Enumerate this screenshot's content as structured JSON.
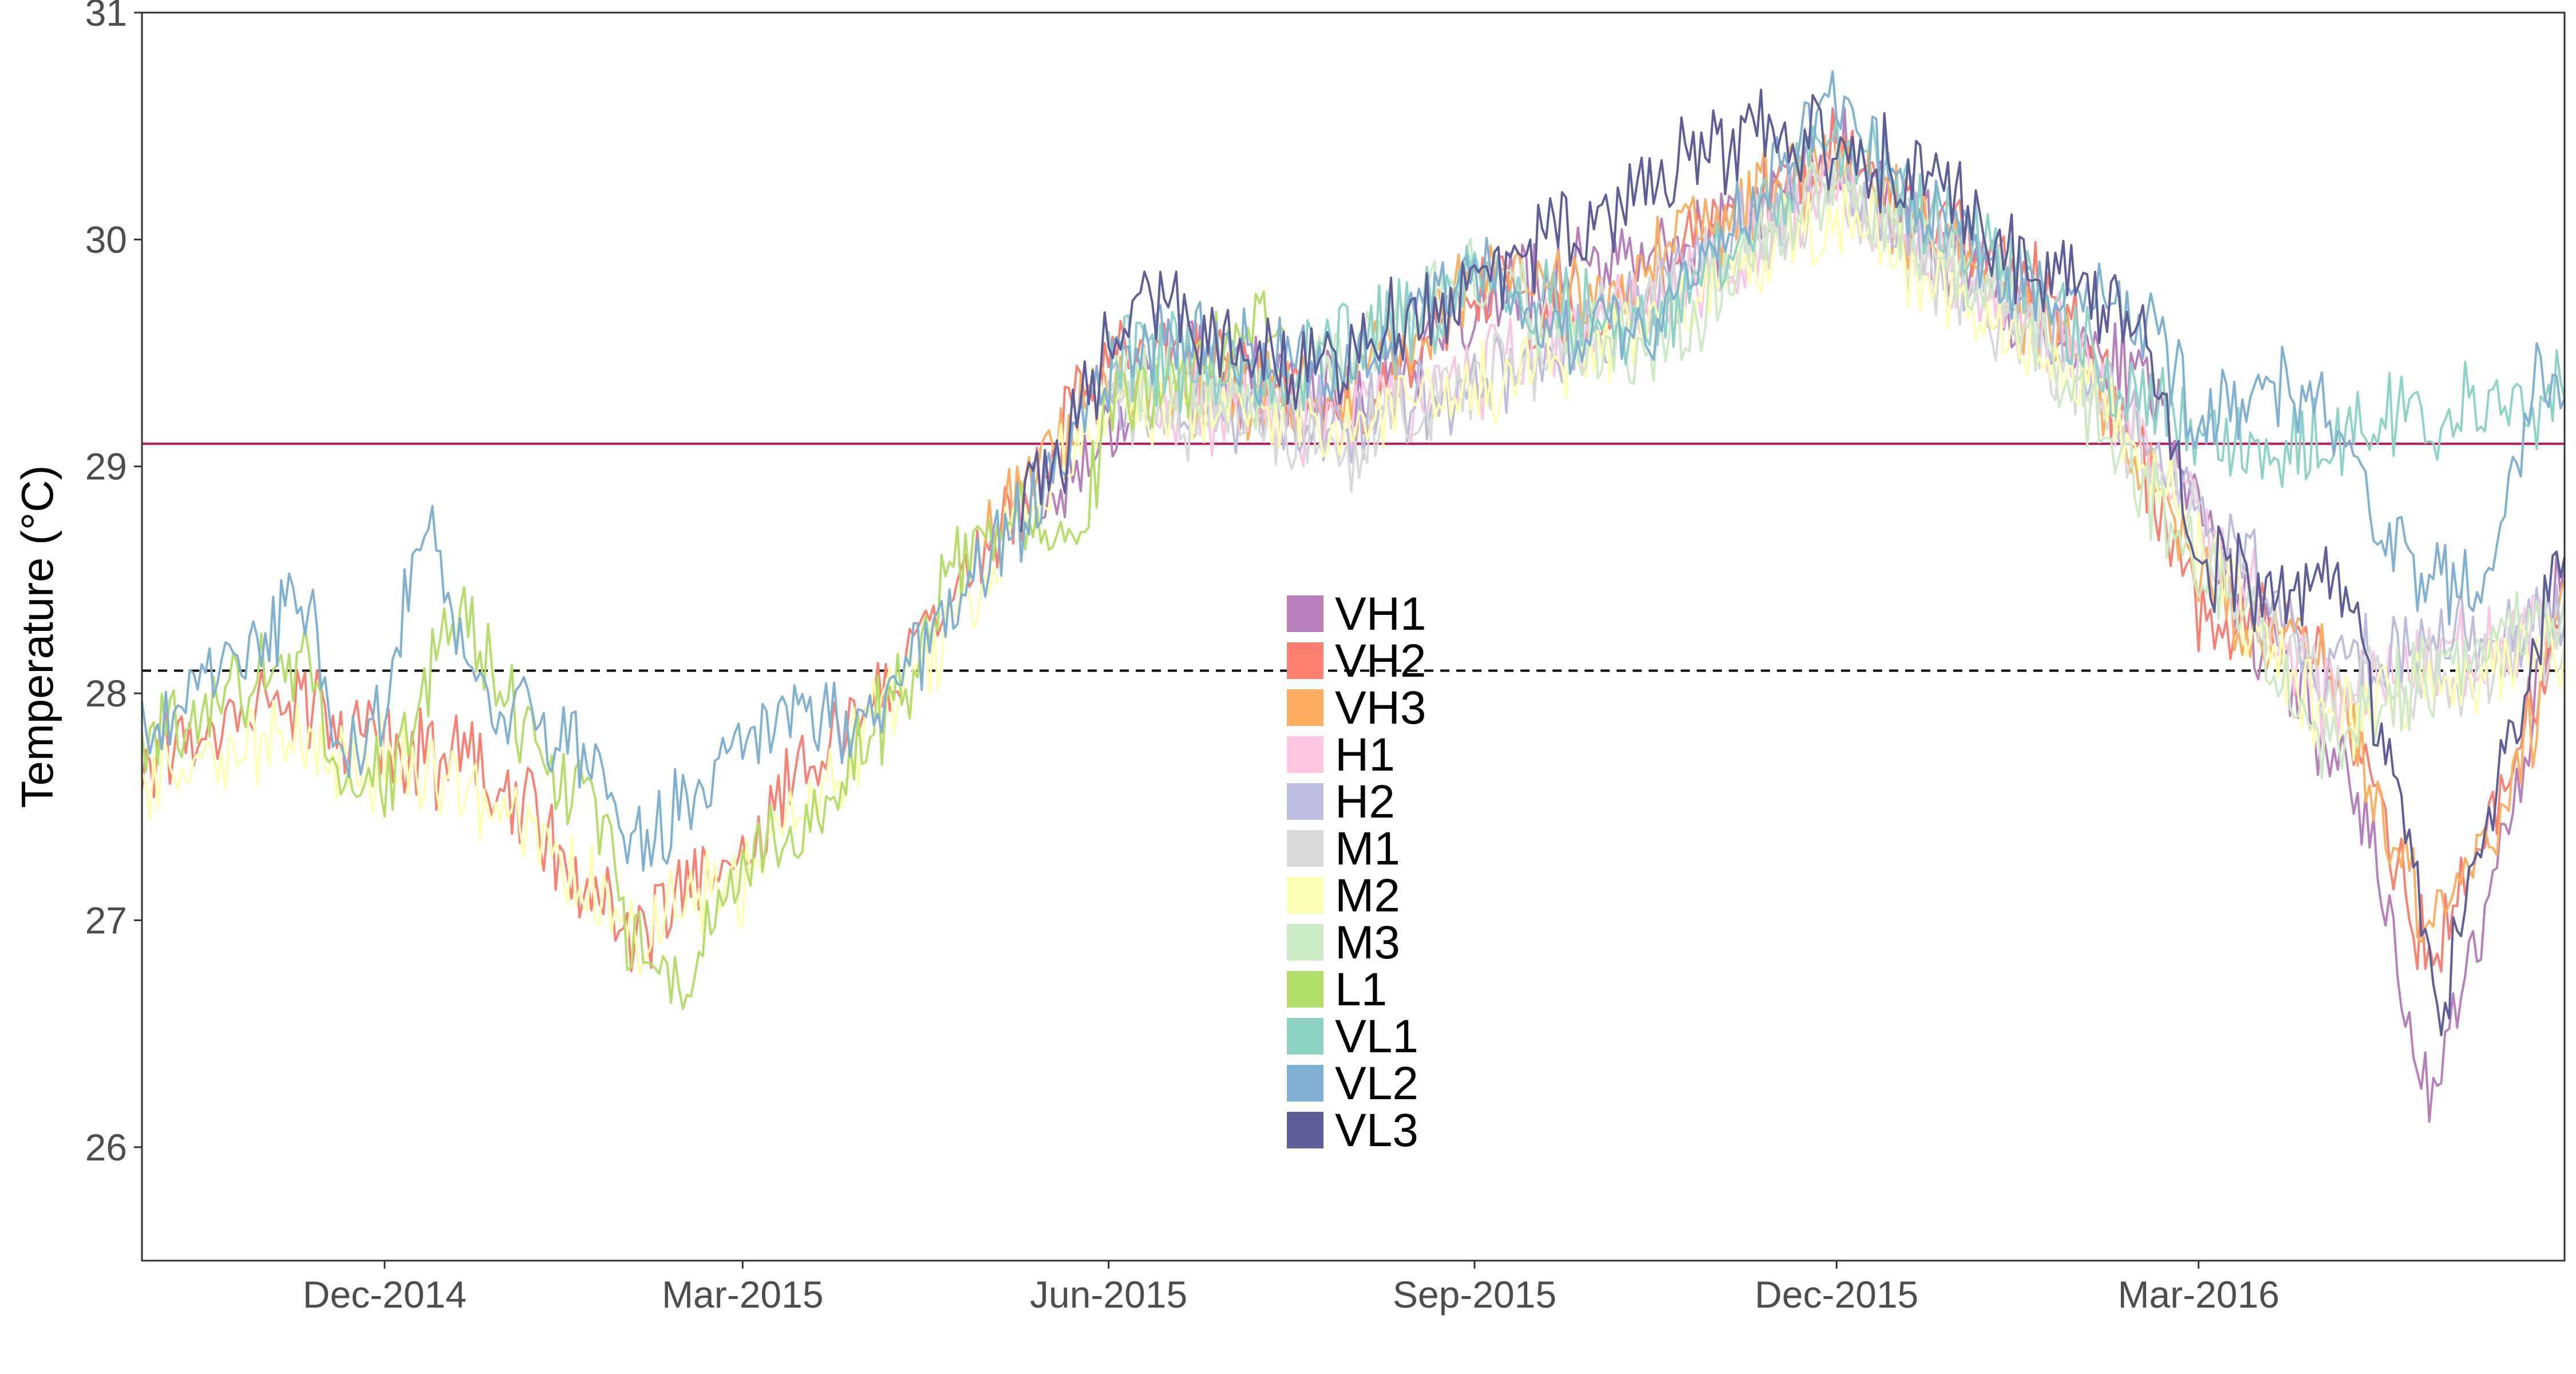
{
  "chart_data": {
    "type": "line",
    "title": "",
    "xlabel": "",
    "ylabel": "Temperature (°C)",
    "ylim": [
      25.5,
      31
    ],
    "xlim": [
      "2014-10-01",
      "2016-06-01"
    ],
    "y_ticks": [
      26,
      27,
      28,
      29,
      30,
      31
    ],
    "x_ticks": [
      {
        "date": "2014-12-01",
        "label": "Dec-2014"
      },
      {
        "date": "2015-03-01",
        "label": "Mar-2015"
      },
      {
        "date": "2015-06-01",
        "label": "Jun-2015"
      },
      {
        "date": "2015-09-01",
        "label": "Sep-2015"
      },
      {
        "date": "2015-12-01",
        "label": "Dec-2015"
      },
      {
        "date": "2016-03-01",
        "label": "Mar-2016"
      }
    ],
    "grid": false,
    "legend_placement": "center",
    "reference_lines": [
      {
        "y": 29.1,
        "style": "solid",
        "color": "#c2185b"
      },
      {
        "y": 28.1,
        "style": "dashed",
        "color": "#000000"
      }
    ],
    "series": [
      {
        "name": "VH1",
        "color": "#b97fbd",
        "points": [
          [
            "2015-05-15",
            28.8
          ],
          [
            "2015-06-15",
            29.5
          ],
          [
            "2015-08-01",
            29.3
          ],
          [
            "2015-09-15",
            29.8
          ],
          [
            "2015-11-01",
            30.0
          ],
          [
            "2015-12-01",
            30.4
          ],
          [
            "2016-01-15",
            29.7
          ],
          [
            "2016-02-15",
            29.4
          ],
          [
            "2016-03-15",
            28.3
          ],
          [
            "2016-04-10",
            27.6
          ],
          [
            "2016-04-28",
            26.2
          ],
          [
            "2016-05-15",
            27.2
          ],
          [
            "2016-06-01",
            28.6
          ]
        ]
      },
      {
        "name": "VH2",
        "color": "#fa8072",
        "points": [
          [
            "2014-10-01",
            27.7
          ],
          [
            "2014-11-01",
            28.0
          ],
          [
            "2014-12-01",
            27.8
          ],
          [
            "2015-01-01",
            27.6
          ],
          [
            "2015-02-01",
            26.9
          ],
          [
            "2015-03-01",
            27.3
          ],
          [
            "2015-04-01",
            28.0
          ],
          [
            "2015-05-01",
            28.6
          ],
          [
            "2015-06-01",
            29.5
          ],
          [
            "2015-07-01",
            29.4
          ],
          [
            "2015-08-01",
            29.2
          ],
          [
            "2015-09-01",
            29.8
          ],
          [
            "2015-10-01",
            29.6
          ],
          [
            "2015-11-01",
            30.1
          ],
          [
            "2015-12-01",
            30.4
          ],
          [
            "2016-01-01",
            30.0
          ],
          [
            "2016-02-01",
            29.6
          ],
          [
            "2016-03-01",
            28.4
          ],
          [
            "2016-04-01",
            28.2
          ],
          [
            "2016-04-28",
            26.8
          ],
          [
            "2016-05-15",
            27.5
          ],
          [
            "2016-06-01",
            28.4
          ]
        ]
      },
      {
        "name": "VH3",
        "color": "#fdae61",
        "points": [
          [
            "2015-05-01",
            28.7
          ],
          [
            "2015-06-01",
            29.4
          ],
          [
            "2015-07-01",
            29.3
          ],
          [
            "2015-08-01",
            29.3
          ],
          [
            "2015-09-01",
            29.9
          ],
          [
            "2015-10-01",
            29.7
          ],
          [
            "2015-11-01",
            30.1
          ],
          [
            "2015-12-01",
            30.3
          ],
          [
            "2016-01-01",
            29.9
          ],
          [
            "2016-02-01",
            29.5
          ],
          [
            "2016-03-01",
            28.5
          ],
          [
            "2016-04-01",
            28.1
          ],
          [
            "2016-04-28",
            27.0
          ],
          [
            "2016-05-20",
            27.6
          ],
          [
            "2016-06-01",
            28.5
          ]
        ]
      },
      {
        "name": "H1",
        "color": "#fcc5e3",
        "points": [
          [
            "2015-06-01",
            29.3
          ],
          [
            "2015-08-01",
            29.2
          ],
          [
            "2015-10-01",
            29.6
          ],
          [
            "2015-12-01",
            30.2
          ],
          [
            "2016-02-01",
            29.5
          ],
          [
            "2016-04-01",
            28.0
          ],
          [
            "2016-06-01",
            28.3
          ]
        ]
      },
      {
        "name": "H2",
        "color": "#bcbddc",
        "points": [
          [
            "2015-06-01",
            29.3
          ],
          [
            "2015-08-01",
            29.2
          ],
          [
            "2015-10-01",
            29.6
          ],
          [
            "2015-12-01",
            30.3
          ],
          [
            "2016-02-01",
            29.5
          ],
          [
            "2016-04-01",
            28.1
          ],
          [
            "2016-06-01",
            28.3
          ]
        ]
      },
      {
        "name": "M1",
        "color": "#d9d9d9",
        "points": [
          [
            "2015-06-01",
            29.3
          ],
          [
            "2015-08-01",
            29.1
          ],
          [
            "2015-10-01",
            29.6
          ],
          [
            "2015-12-01",
            30.2
          ],
          [
            "2016-02-01",
            29.4
          ],
          [
            "2016-04-01",
            28.0
          ],
          [
            "2016-06-01",
            28.2
          ]
        ]
      },
      {
        "name": "M2",
        "color": "#ffffb3",
        "points": [
          [
            "2014-10-01",
            27.6
          ],
          [
            "2014-11-01",
            27.8
          ],
          [
            "2014-12-01",
            27.7
          ],
          [
            "2015-01-01",
            27.5
          ],
          [
            "2015-02-01",
            26.9
          ],
          [
            "2015-03-01",
            27.2
          ],
          [
            "2015-04-01",
            27.8
          ],
          [
            "2015-05-01",
            28.5
          ],
          [
            "2015-06-01",
            29.3
          ],
          [
            "2015-08-01",
            29.2
          ],
          [
            "2015-10-01",
            29.5
          ],
          [
            "2015-12-01",
            30.1
          ],
          [
            "2016-02-01",
            29.4
          ],
          [
            "2016-04-01",
            27.9
          ],
          [
            "2016-06-01",
            28.2
          ]
        ]
      },
      {
        "name": "M3",
        "color": "#ccebc5",
        "points": [
          [
            "2015-06-01",
            29.4
          ],
          [
            "2015-07-15",
            29.3
          ],
          [
            "2015-09-01",
            29.8
          ],
          [
            "2015-10-15",
            29.5
          ],
          [
            "2015-12-01",
            30.3
          ],
          [
            "2016-01-15",
            29.7
          ],
          [
            "2016-03-01",
            28.6
          ],
          [
            "2016-04-01",
            27.8
          ],
          [
            "2016-06-01",
            28.4
          ]
        ]
      },
      {
        "name": "L1",
        "color": "#b3de69",
        "points": [
          [
            "2014-10-01",
            27.8
          ],
          [
            "2014-10-25",
            28.0
          ],
          [
            "2014-11-10",
            28.2
          ],
          [
            "2014-11-20",
            27.6
          ],
          [
            "2014-12-01",
            27.6
          ],
          [
            "2014-12-20",
            28.4
          ],
          [
            "2015-01-10",
            27.7
          ],
          [
            "2015-01-25",
            27.5
          ],
          [
            "2015-02-01",
            26.9
          ],
          [
            "2015-02-15",
            26.7
          ],
          [
            "2015-03-01",
            27.2
          ],
          [
            "2015-03-20",
            27.5
          ],
          [
            "2015-04-10",
            28.0
          ],
          [
            "2015-04-25",
            28.6
          ],
          [
            "2015-05-10",
            28.8
          ],
          [
            "2015-05-25",
            28.6
          ],
          [
            "2015-06-01",
            29.3
          ],
          [
            "2015-07-15",
            29.6
          ]
        ]
      },
      {
        "name": "VL1",
        "color": "#8dd3c7",
        "points": [
          [
            "2015-06-01",
            29.5
          ],
          [
            "2015-07-15",
            29.4
          ],
          [
            "2015-09-01",
            29.8
          ],
          [
            "2015-10-15",
            29.6
          ],
          [
            "2015-12-01",
            30.5
          ],
          [
            "2016-01-15",
            29.8
          ],
          [
            "2016-02-15",
            29.3
          ],
          [
            "2016-03-15",
            29.0
          ],
          [
            "2016-04-15",
            29.2
          ],
          [
            "2016-06-01",
            29.3
          ]
        ]
      },
      {
        "name": "VL2",
        "color": "#80b1d3",
        "points": [
          [
            "2014-10-01",
            27.8
          ],
          [
            "2014-11-10",
            28.4
          ],
          [
            "2014-11-22",
            27.7
          ],
          [
            "2014-12-01",
            27.9
          ],
          [
            "2014-12-10",
            28.8
          ],
          [
            "2014-12-25",
            28.0
          ],
          [
            "2015-01-20",
            27.8
          ],
          [
            "2015-02-01",
            27.3
          ],
          [
            "2015-02-20",
            27.6
          ],
          [
            "2015-03-10",
            27.9
          ],
          [
            "2015-04-01",
            27.9
          ],
          [
            "2015-05-01",
            28.6
          ],
          [
            "2015-05-20",
            29.0
          ],
          [
            "2015-06-05",
            29.6
          ],
          [
            "2015-07-01",
            29.5
          ],
          [
            "2015-08-01",
            29.4
          ],
          [
            "2015-09-01",
            29.9
          ],
          [
            "2015-09-20",
            29.6
          ],
          [
            "2015-10-15",
            29.6
          ],
          [
            "2015-11-15",
            30.3
          ],
          [
            "2015-12-01",
            30.6
          ],
          [
            "2015-12-20",
            30.2
          ],
          [
            "2016-01-15",
            29.8
          ],
          [
            "2016-02-15",
            29.7
          ],
          [
            "2016-03-01",
            29.2
          ],
          [
            "2016-03-15",
            29.3
          ],
          [
            "2016-04-01",
            29.3
          ],
          [
            "2016-04-20",
            28.6
          ],
          [
            "2016-05-10",
            28.4
          ],
          [
            "2016-05-25",
            29.4
          ],
          [
            "2016-06-01",
            29.3
          ]
        ]
      },
      {
        "name": "VL3",
        "color": "#5e5e99",
        "points": [
          [
            "2015-05-10",
            28.8
          ],
          [
            "2015-05-25",
            29.2
          ],
          [
            "2015-06-01",
            29.6
          ],
          [
            "2015-06-15",
            29.7
          ],
          [
            "2015-07-01",
            29.5
          ],
          [
            "2015-07-20",
            29.4
          ],
          [
            "2015-11-10",
            30.5
          ],
          [
            "2015-12-01",
            30.4
          ],
          [
            "2015-12-20",
            30.3
          ],
          [
            "2016-01-15",
            29.9
          ],
          [
            "2016-02-15",
            29.7
          ],
          [
            "2016-03-01",
            28.6
          ],
          [
            "2016-03-20",
            28.4
          ],
          [
            "2016-04-05",
            28.5
          ],
          [
            "2016-04-20",
            27.6
          ],
          [
            "2016-05-01",
            26.6
          ],
          [
            "2016-05-15",
            27.6
          ],
          [
            "2016-06-01",
            28.6
          ]
        ]
      }
    ]
  }
}
